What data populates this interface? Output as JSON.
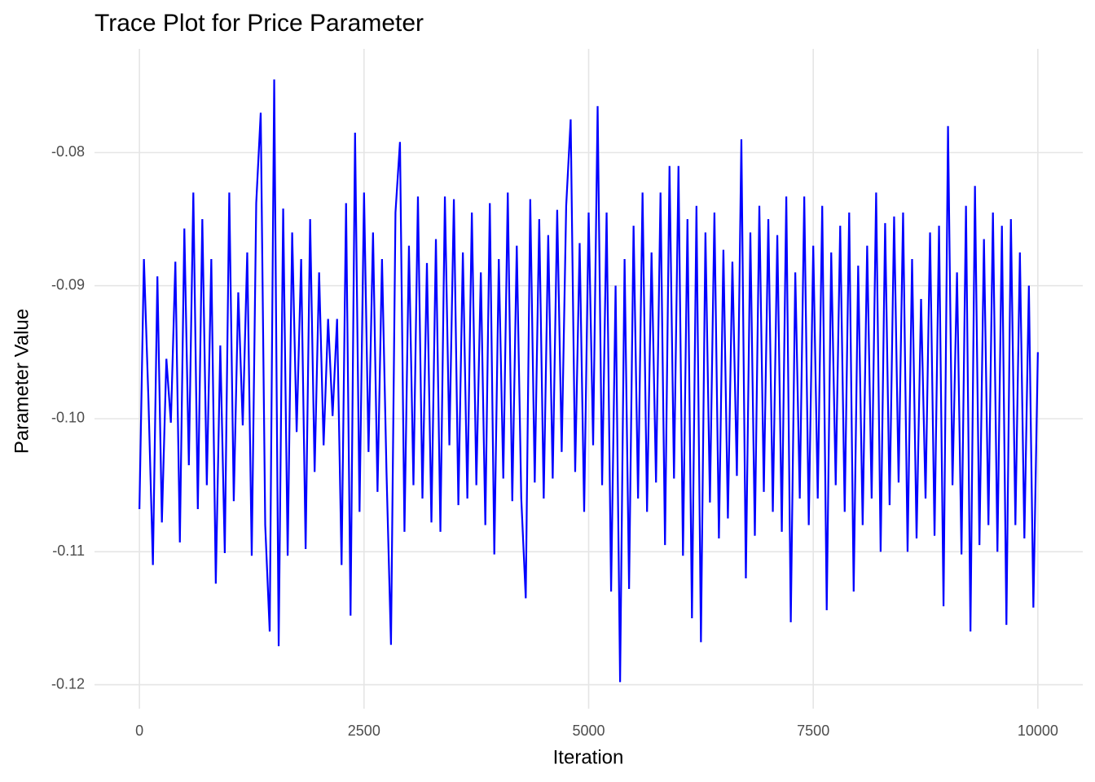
{
  "chart_data": {
    "type": "line",
    "title": "Trace Plot for Price Parameter",
    "x_label": "Iteration",
    "y_label": "Parameter Value",
    "xlim": [
      -500,
      10500
    ],
    "xticks": [
      0,
      2500,
      5000,
      7500,
      10000
    ],
    "ylim": [
      -0.1218,
      -0.0722
    ],
    "yticks": [
      -0.08,
      -0.09,
      {
        "value": -0.1,
        "label": "-0.10"
      },
      -0.11,
      -0.12
    ],
    "grid": true,
    "x": [
      0,
      50,
      100,
      150,
      200,
      250,
      300,
      350,
      400,
      450,
      500,
      550,
      600,
      650,
      700,
      750,
      800,
      850,
      900,
      950,
      1000,
      1050,
      1100,
      1150,
      1200,
      1250,
      1300,
      1350,
      1400,
      1450,
      1500,
      1550,
      1600,
      1650,
      1700,
      1750,
      1800,
      1850,
      1900,
      1950,
      2000,
      2050,
      2100,
      2150,
      2200,
      2250,
      2300,
      2350,
      2400,
      2450,
      2500,
      2550,
      2600,
      2650,
      2700,
      2750,
      2800,
      2850,
      2900,
      2950,
      3000,
      3050,
      3100,
      3150,
      3200,
      3250,
      3300,
      3350,
      3400,
      3450,
      3500,
      3550,
      3600,
      3650,
      3700,
      3750,
      3800,
      3850,
      3900,
      3950,
      4000,
      4050,
      4100,
      4150,
      4200,
      4250,
      4300,
      4350,
      4400,
      4450,
      4500,
      4550,
      4600,
      4650,
      4700,
      4750,
      4800,
      4850,
      4900,
      4950,
      5000,
      5050,
      5100,
      5150,
      5200,
      5250,
      5300,
      5350,
      5400,
      5450,
      5500,
      5550,
      5600,
      5650,
      5700,
      5750,
      5800,
      5850,
      5900,
      5950,
      6000,
      6050,
      6100,
      6150,
      6200,
      6250,
      6300,
      6350,
      6400,
      6450,
      6500,
      6550,
      6600,
      6650,
      6700,
      6750,
      6800,
      6850,
      6900,
      6950,
      7000,
      7050,
      7100,
      7150,
      7200,
      7250,
      7300,
      7350,
      7400,
      7450,
      7500,
      7550,
      7600,
      7650,
      7700,
      7750,
      7800,
      7850,
      7900,
      7950,
      8000,
      8050,
      8100,
      8150,
      8200,
      8250,
      8300,
      8350,
      8400,
      8450,
      8500,
      8550,
      8600,
      8650,
      8700,
      8750,
      8800,
      8850,
      8900,
      8950,
      9000,
      9050,
      9100,
      9150,
      9200,
      9250,
      9300,
      9350,
      9400,
      9450,
      9500,
      9550,
      9600,
      9650,
      9700,
      9750,
      9800,
      9850,
      9900,
      9950,
      10000
    ],
    "series": [
      {
        "name": "Price",
        "color": "#0000ff",
        "values": [
          -0.1068,
          -0.088,
          -0.0985,
          -0.111,
          -0.0893,
          -0.1078,
          -0.0955,
          -0.1003,
          -0.0882,
          -0.1093,
          -0.0857,
          -0.1035,
          -0.083,
          -0.1068,
          -0.085,
          -0.105,
          -0.088,
          -0.1124,
          -0.0945,
          -0.1101,
          -0.083,
          -0.1062,
          -0.0905,
          -0.1005,
          -0.0875,
          -0.1103,
          -0.0838,
          -0.077,
          -0.108,
          -0.116,
          -0.0745,
          -0.1171,
          -0.0842,
          -0.1103,
          -0.086,
          -0.101,
          -0.088,
          -0.1098,
          -0.085,
          -0.104,
          -0.089,
          -0.102,
          -0.0925,
          -0.0998,
          -0.0925,
          -0.111,
          -0.0838,
          -0.1148,
          -0.0785,
          -0.107,
          -0.083,
          -0.1025,
          -0.086,
          -0.1055,
          -0.088,
          -0.104,
          -0.117,
          -0.0845,
          -0.0792,
          -0.1085,
          -0.087,
          -0.105,
          -0.0833,
          -0.106,
          -0.0883,
          -0.1078,
          -0.0865,
          -0.1085,
          -0.0833,
          -0.102,
          -0.0835,
          -0.1065,
          -0.0875,
          -0.106,
          -0.0845,
          -0.105,
          -0.089,
          -0.108,
          -0.0838,
          -0.1102,
          -0.088,
          -0.1045,
          -0.083,
          -0.1062,
          -0.087,
          -0.106,
          -0.1135,
          -0.0835,
          -0.1048,
          -0.085,
          -0.106,
          -0.0862,
          -0.1045,
          -0.0843,
          -0.1025,
          -0.084,
          -0.0775,
          -0.104,
          -0.0868,
          -0.107,
          -0.0845,
          -0.102,
          -0.0765,
          -0.105,
          -0.0845,
          -0.113,
          -0.09,
          -0.1198,
          -0.088,
          -0.1128,
          -0.0855,
          -0.106,
          -0.083,
          -0.107,
          -0.0875,
          -0.1048,
          -0.083,
          -0.1095,
          -0.081,
          -0.1045,
          -0.081,
          -0.1103,
          -0.085,
          -0.115,
          -0.084,
          -0.1168,
          -0.086,
          -0.1063,
          -0.0845,
          -0.109,
          -0.0873,
          -0.1075,
          -0.0882,
          -0.1043,
          -0.079,
          -0.112,
          -0.086,
          -0.1088,
          -0.084,
          -0.1055,
          -0.085,
          -0.107,
          -0.0862,
          -0.1085,
          -0.0833,
          -0.1153,
          -0.089,
          -0.106,
          -0.0833,
          -0.108,
          -0.087,
          -0.106,
          -0.084,
          -0.1144,
          -0.0875,
          -0.105,
          -0.0855,
          -0.107,
          -0.0845,
          -0.113,
          -0.0885,
          -0.108,
          -0.087,
          -0.106,
          -0.083,
          -0.11,
          -0.0853,
          -0.1065,
          -0.0848,
          -0.1048,
          -0.0845,
          -0.11,
          -0.088,
          -0.109,
          -0.091,
          -0.106,
          -0.086,
          -0.1088,
          -0.0855,
          -0.1141,
          -0.078,
          -0.105,
          -0.089,
          -0.1102,
          -0.084,
          -0.116,
          -0.0825,
          -0.1095,
          -0.0865,
          -0.108,
          -0.0845,
          -0.11,
          -0.0855,
          -0.1155,
          -0.085,
          -0.108,
          -0.0875,
          -0.109,
          -0.09,
          -0.1142,
          -0.095
        ]
      }
    ]
  }
}
